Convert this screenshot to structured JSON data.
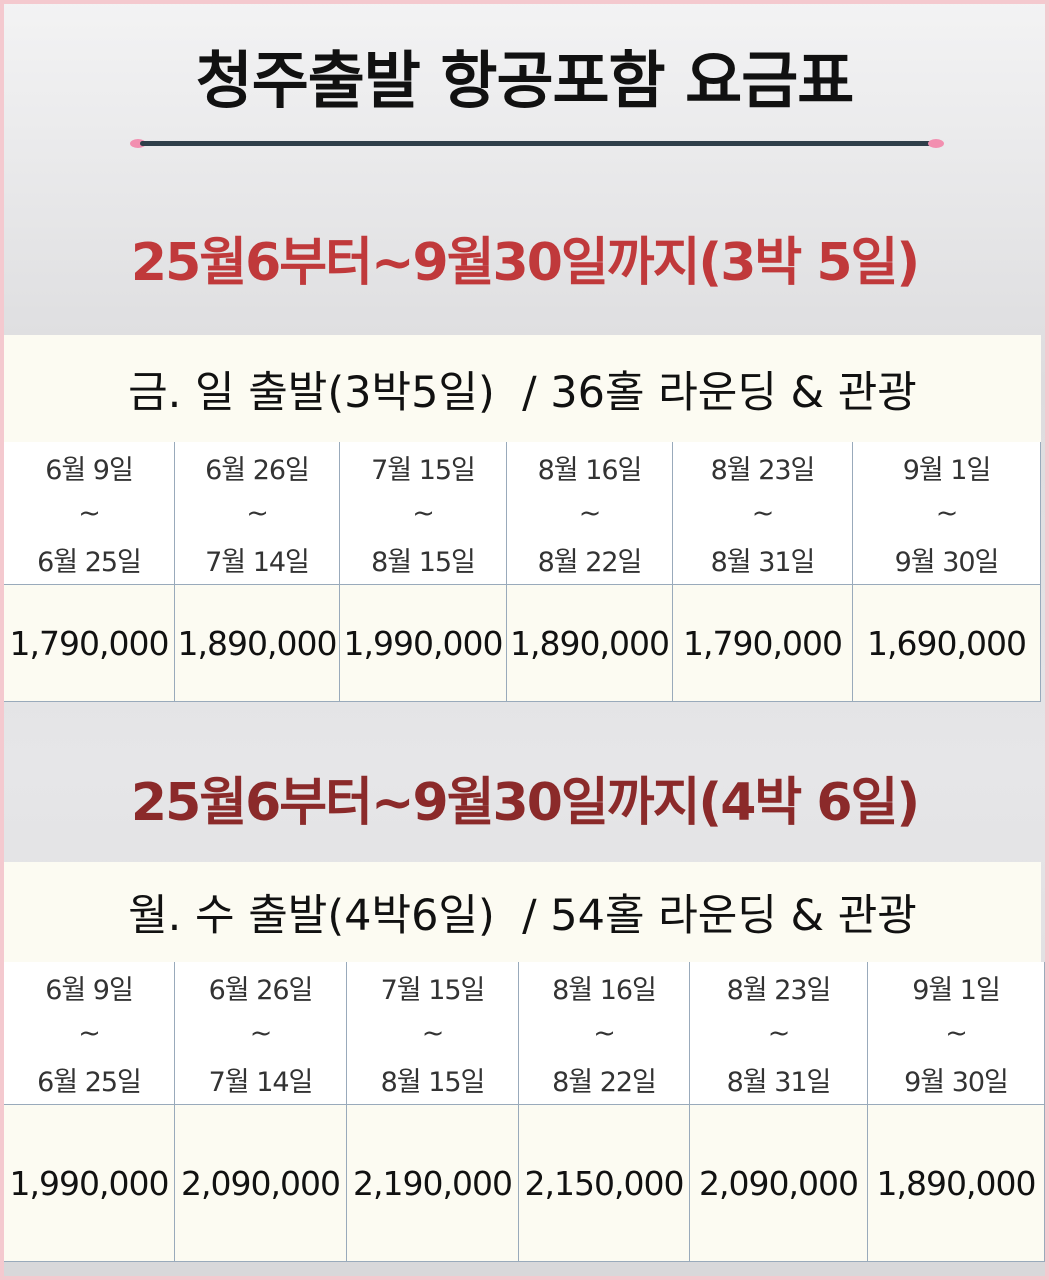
{
  "header": {
    "title": "청주출발 항공포함 요금표"
  },
  "sections": [
    {
      "heading": "25월6부터~9월30일까지(3박 5일)",
      "subheading": "금. 일 출발(3박5일)  / 36홀 라운딩 & 관광",
      "periods": [
        {
          "start": "6월 9일",
          "sep": "~",
          "end": "6월 25일"
        },
        {
          "start": "6월 26일",
          "sep": "~",
          "end": "7월 14일"
        },
        {
          "start": "7월 15일",
          "sep": "~",
          "end": "8월 15일"
        },
        {
          "start": "8월 16일",
          "sep": "~",
          "end": "8월 22일"
        },
        {
          "start": "8월 23일",
          "sep": "~",
          "end": "8월 31일"
        },
        {
          "start": "9월 1일",
          "sep": "~",
          "end": "9월 30일"
        }
      ],
      "prices": [
        "1,790,000",
        "1,890,000",
        "1,990,000",
        "1,890,000",
        "1,790,000",
        "1,690,000"
      ]
    },
    {
      "heading": "25월6부터~9월30일까지(4박 6일)",
      "subheading": "월. 수 출발(4박6일)  / 54홀 라운딩 & 관광",
      "periods": [
        {
          "start": "6월 9일",
          "sep": "~",
          "end": "6월 25일"
        },
        {
          "start": "6월 26일",
          "sep": "~",
          "end": "7월 14일"
        },
        {
          "start": "7월 15일",
          "sep": "~",
          "end": "8월 15일"
        },
        {
          "start": "8월 16일",
          "sep": "~",
          "end": "8월 22일"
        },
        {
          "start": "8월 23일",
          "sep": "~",
          "end": "8월 31일"
        },
        {
          "start": "9월 1일",
          "sep": "~",
          "end": "9월 30일"
        }
      ],
      "prices": [
        "1,990,000",
        "2,090,000",
        "2,190,000",
        "2,150,000",
        "2,090,000",
        "1,890,000"
      ]
    }
  ]
}
